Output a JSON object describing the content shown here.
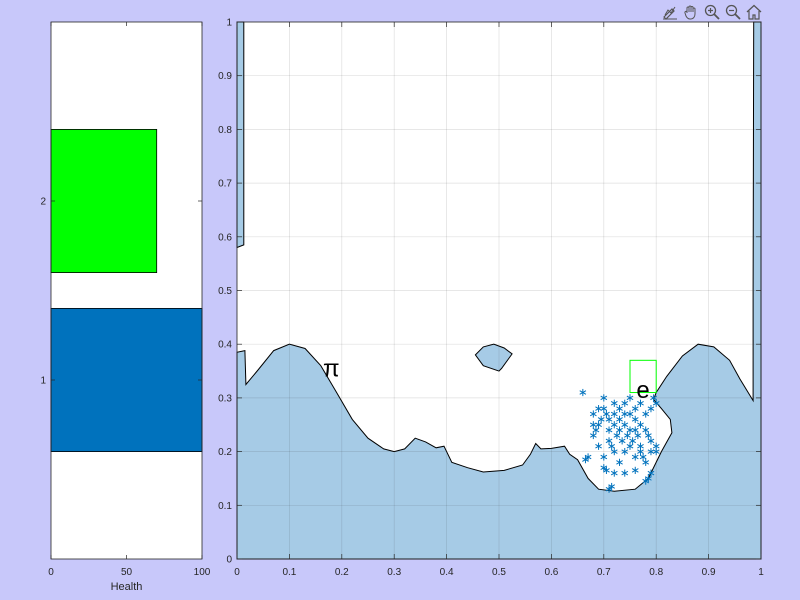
{
  "toolbar": {
    "items": [
      {
        "name": "edit-plot-icon"
      },
      {
        "name": "pan-hand-icon"
      },
      {
        "name": "zoom-in-icon"
      },
      {
        "name": "zoom-out-icon"
      },
      {
        "name": "home-restore-icon"
      }
    ]
  },
  "colors": {
    "figure_bg": "#c8c8fa",
    "terrain_fill": "#a6cbe6",
    "health_player2": "#00ff00",
    "health_player1": "#0072bd",
    "scatter": "#0072bd",
    "target_box": "#00ff00",
    "grid": "#d9d9d9"
  },
  "chart_data": [
    {
      "type": "bar",
      "orientation": "horizontal",
      "categories": [
        "1",
        "2"
      ],
      "values": [
        100,
        70
      ],
      "colors": [
        "#0072bd",
        "#00ff00"
      ],
      "xlabel": "Health",
      "ylabel": "",
      "xlim": [
        0,
        100
      ],
      "ylim": [
        0,
        3
      ],
      "x_ticks": [
        "0",
        "50",
        "100"
      ],
      "y_ticks": [
        "1",
        "2"
      ],
      "grid": false
    },
    {
      "type": "area",
      "xlim": [
        0,
        1
      ],
      "ylim": [
        0,
        1
      ],
      "x_ticks": [
        "0",
        "0.1",
        "0.2",
        "0.3",
        "0.4",
        "0.5",
        "0.6",
        "0.7",
        "0.8",
        "0.9",
        "1"
      ],
      "y_ticks": [
        "0",
        "0.1",
        "0.2",
        "0.3",
        "0.4",
        "0.5",
        "0.6",
        "0.7",
        "0.8",
        "0.9",
        "1"
      ],
      "grid": true,
      "terrain": [
        [
          0,
          0
        ],
        [
          0,
          0.385
        ],
        [
          0.015,
          0.388
        ],
        [
          0.017,
          0.325
        ],
        [
          0.04,
          0.352
        ],
        [
          0.07,
          0.388
        ],
        [
          0.1,
          0.4
        ],
        [
          0.13,
          0.392
        ],
        [
          0.16,
          0.36
        ],
        [
          0.19,
          0.31
        ],
        [
          0.22,
          0.26
        ],
        [
          0.25,
          0.225
        ],
        [
          0.28,
          0.205
        ],
        [
          0.3,
          0.2
        ],
        [
          0.32,
          0.205
        ],
        [
          0.34,
          0.225
        ],
        [
          0.36,
          0.218
        ],
        [
          0.38,
          0.207
        ],
        [
          0.395,
          0.21
        ],
        [
          0.41,
          0.18
        ],
        [
          0.44,
          0.17
        ],
        [
          0.47,
          0.162
        ],
        [
          0.51,
          0.165
        ],
        [
          0.545,
          0.175
        ],
        [
          0.56,
          0.195
        ],
        [
          0.57,
          0.215
        ],
        [
          0.58,
          0.205
        ],
        [
          0.6,
          0.206
        ],
        [
          0.625,
          0.21
        ],
        [
          0.635,
          0.195
        ],
        [
          0.65,
          0.185
        ],
        [
          0.67,
          0.15
        ],
        [
          0.69,
          0.13
        ],
        [
          0.72,
          0.126
        ],
        [
          0.76,
          0.13
        ],
        [
          0.785,
          0.15
        ],
        [
          0.81,
          0.2
        ],
        [
          0.83,
          0.235
        ],
        [
          0.827,
          0.26
        ],
        [
          0.81,
          0.28
        ],
        [
          0.795,
          0.297
        ],
        [
          0.8,
          0.31
        ],
        [
          0.82,
          0.34
        ],
        [
          0.85,
          0.378
        ],
        [
          0.88,
          0.4
        ],
        [
          0.91,
          0.395
        ],
        [
          0.94,
          0.37
        ],
        [
          0.96,
          0.335
        ],
        [
          0.985,
          0.295
        ],
        [
          0.985,
          0.5
        ],
        [
          0.986,
          1
        ],
        [
          1,
          1
        ],
        [
          1,
          0
        ]
      ],
      "left_wall": [
        [
          0,
          1
        ],
        [
          0.013,
          1
        ],
        [
          0.013,
          0.585
        ],
        [
          0,
          0.58
        ]
      ],
      "floating_island": [
        [
          0.455,
          0.38
        ],
        [
          0.47,
          0.395
        ],
        [
          0.49,
          0.4
        ],
        [
          0.51,
          0.393
        ],
        [
          0.525,
          0.382
        ],
        [
          0.505,
          0.355
        ],
        [
          0.5,
          0.35
        ],
        [
          0.47,
          0.36
        ]
      ],
      "target_box": [
        [
          0.75,
          0.31
        ],
        [
          0.8,
          0.37
        ]
      ],
      "labels": [
        {
          "text": "π",
          "x": 0.18,
          "y": 0.34,
          "color": "#000000"
        },
        {
          "text": "e",
          "x": 0.775,
          "y": 0.3,
          "color": "#000000"
        }
      ],
      "scatter": [
        [
          0.66,
          0.31
        ],
        [
          0.68,
          0.27
        ],
        [
          0.69,
          0.25
        ],
        [
          0.7,
          0.28
        ],
        [
          0.7,
          0.3
        ],
        [
          0.71,
          0.24
        ],
        [
          0.71,
          0.22
        ],
        [
          0.72,
          0.29
        ],
        [
          0.72,
          0.27
        ],
        [
          0.73,
          0.26
        ],
        [
          0.73,
          0.28
        ],
        [
          0.74,
          0.27
        ],
        [
          0.74,
          0.25
        ],
        [
          0.75,
          0.27
        ],
        [
          0.75,
          0.24
        ],
        [
          0.76,
          0.28
        ],
        [
          0.76,
          0.26
        ],
        [
          0.77,
          0.29
        ],
        [
          0.77,
          0.25
        ],
        [
          0.78,
          0.27
        ],
        [
          0.78,
          0.24
        ],
        [
          0.79,
          0.22
        ],
        [
          0.79,
          0.2
        ],
        [
          0.68,
          0.23
        ],
        [
          0.69,
          0.21
        ],
        [
          0.7,
          0.19
        ],
        [
          0.72,
          0.2
        ],
        [
          0.73,
          0.18
        ],
        [
          0.74,
          0.2
        ],
        [
          0.75,
          0.21
        ],
        [
          0.76,
          0.19
        ],
        [
          0.77,
          0.21
        ],
        [
          0.78,
          0.18
        ],
        [
          0.8,
          0.2
        ],
        [
          0.8,
          0.21
        ],
        [
          0.67,
          0.19
        ],
        [
          0.665,
          0.185
        ],
        [
          0.7,
          0.17
        ],
        [
          0.705,
          0.165
        ],
        [
          0.72,
          0.16
        ],
        [
          0.74,
          0.16
        ],
        [
          0.76,
          0.165
        ],
        [
          0.79,
          0.16
        ],
        [
          0.785,
          0.15
        ],
        [
          0.78,
          0.145
        ],
        [
          0.71,
          0.13
        ],
        [
          0.715,
          0.135
        ],
        [
          0.725,
          0.23
        ],
        [
          0.735,
          0.22
        ],
        [
          0.745,
          0.23
        ],
        [
          0.755,
          0.22
        ],
        [
          0.685,
          0.24
        ],
        [
          0.695,
          0.26
        ],
        [
          0.705,
          0.27
        ],
        [
          0.71,
          0.26
        ],
        [
          0.72,
          0.25
        ],
        [
          0.73,
          0.24
        ],
        [
          0.74,
          0.29
        ],
        [
          0.75,
          0.3
        ],
        [
          0.76,
          0.24
        ],
        [
          0.765,
          0.23
        ],
        [
          0.77,
          0.2
        ],
        [
          0.775,
          0.19
        ],
        [
          0.785,
          0.23
        ],
        [
          0.79,
          0.28
        ],
        [
          0.795,
          0.3
        ],
        [
          0.8,
          0.29
        ],
        [
          0.69,
          0.28
        ],
        [
          0.68,
          0.25
        ],
        [
          0.715,
          0.21
        ]
      ]
    }
  ]
}
